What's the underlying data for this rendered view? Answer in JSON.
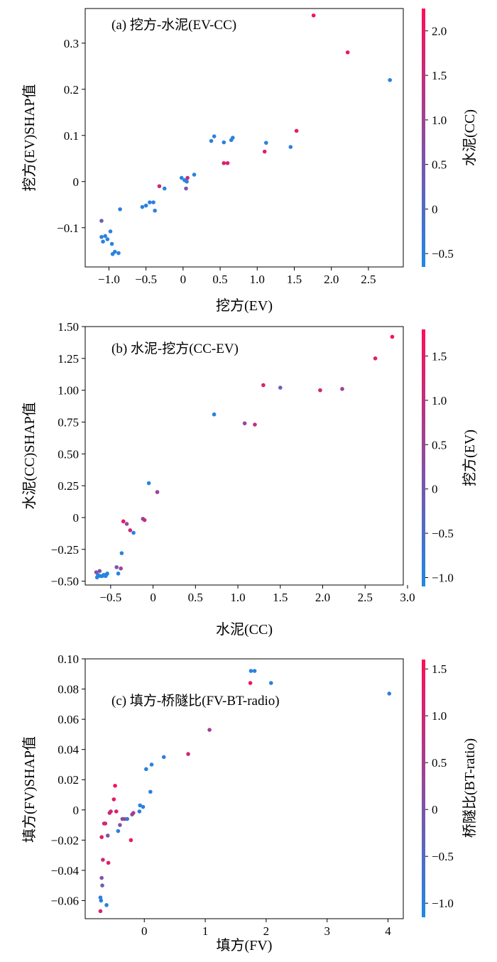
{
  "chart_data": [
    {
      "type": "scatter",
      "annotation": "(a) 挖方-水泥(EV-CC)",
      "xlabel": "挖方(EV)",
      "ylabel": "挖方(EV)SHAP值",
      "colorbar_label": "水泥(CC)",
      "xlim": [
        -1.32,
        2.97
      ],
      "ylim": [
        -0.185,
        0.375
      ],
      "xticks": [
        -1.0,
        -0.5,
        0,
        0.5,
        1.0,
        1.5,
        2.0,
        2.5
      ],
      "xtick_labels": [
        "−1.0",
        "−0.5",
        "0",
        "0.5",
        "1.0",
        "1.5",
        "2.0",
        "2.5"
      ],
      "yticks": [
        -0.1,
        0,
        0.1,
        0.2,
        0.3
      ],
      "ytick_labels": [
        "−0.1",
        "0",
        "0.1",
        "0.2",
        "0.3"
      ],
      "clim": [
        -0.65,
        2.25
      ],
      "cticks": [
        -0.5,
        0,
        0.5,
        1.0,
        1.5,
        2.0
      ],
      "ctick_labels": [
        "−0.5",
        "0",
        "0.5",
        "1.0",
        "1.5",
        "2.0"
      ],
      "points": [
        {
          "x": -1.1,
          "y": -0.085,
          "c": 0.4
        },
        {
          "x": -1.1,
          "y": -0.12,
          "c": -0.5
        },
        {
          "x": -1.08,
          "y": -0.13,
          "c": -0.5
        },
        {
          "x": -1.05,
          "y": -0.118,
          "c": -0.5
        },
        {
          "x": -1.02,
          "y": -0.125,
          "c": -0.5
        },
        {
          "x": -0.98,
          "y": -0.108,
          "c": -0.5
        },
        {
          "x": -0.96,
          "y": -0.135,
          "c": -0.5
        },
        {
          "x": -0.95,
          "y": -0.157,
          "c": -0.5
        },
        {
          "x": -0.92,
          "y": -0.152,
          "c": -0.5
        },
        {
          "x": -0.87,
          "y": -0.155,
          "c": -0.5
        },
        {
          "x": -0.85,
          "y": -0.06,
          "c": -0.5
        },
        {
          "x": -0.55,
          "y": -0.055,
          "c": -0.5
        },
        {
          "x": -0.5,
          "y": -0.052,
          "c": -0.5
        },
        {
          "x": -0.45,
          "y": -0.045,
          "c": -0.5
        },
        {
          "x": -0.4,
          "y": -0.045,
          "c": -0.5
        },
        {
          "x": -0.38,
          "y": -0.063,
          "c": -0.5
        },
        {
          "x": -0.32,
          "y": -0.01,
          "c": 1.6
        },
        {
          "x": -0.25,
          "y": -0.015,
          "c": -0.5
        },
        {
          "x": -0.02,
          "y": 0.008,
          "c": -0.5
        },
        {
          "x": 0.02,
          "y": 0.003,
          "c": -0.5
        },
        {
          "x": 0.05,
          "y": 0.0,
          "c": -0.5
        },
        {
          "x": 0.06,
          "y": 0.008,
          "c": 1.5
        },
        {
          "x": 0.04,
          "y": -0.015,
          "c": 0.5
        },
        {
          "x": 0.15,
          "y": 0.015,
          "c": -0.5
        },
        {
          "x": 0.38,
          "y": 0.088,
          "c": -0.5
        },
        {
          "x": 0.42,
          "y": 0.098,
          "c": -0.5
        },
        {
          "x": 0.55,
          "y": 0.085,
          "c": -0.5
        },
        {
          "x": 0.55,
          "y": 0.04,
          "c": 1.8
        },
        {
          "x": 0.6,
          "y": 0.04,
          "c": 1.8
        },
        {
          "x": 0.65,
          "y": 0.09,
          "c": -0.5
        },
        {
          "x": 0.67,
          "y": 0.095,
          "c": -0.5
        },
        {
          "x": 1.12,
          "y": 0.084,
          "c": -0.5
        },
        {
          "x": 1.1,
          "y": 0.065,
          "c": 1.8
        },
        {
          "x": 1.45,
          "y": 0.075,
          "c": -0.5
        },
        {
          "x": 1.53,
          "y": 0.11,
          "c": 1.9
        },
        {
          "x": 1.76,
          "y": 0.36,
          "c": 2.1
        },
        {
          "x": 2.22,
          "y": 0.28,
          "c": 2.0
        },
        {
          "x": 2.79,
          "y": 0.22,
          "c": -0.5
        }
      ]
    },
    {
      "type": "scatter",
      "annotation": "(b) 水泥-挖方(CC-EV)",
      "xlabel": "水泥(CC)",
      "ylabel": "水泥(CC)SHAP值",
      "colorbar_label": "挖方(EV)",
      "xlim": [
        -0.8,
        2.95
      ],
      "ylim": [
        -0.53,
        1.5
      ],
      "xticks": [
        -0.5,
        0,
        0.5,
        1.0,
        1.5,
        2.0,
        2.5,
        3.0
      ],
      "xtick_labels": [
        "−0.5",
        "0",
        "0.5",
        "1.0",
        "1.5",
        "2.0",
        "2.5",
        "3.0"
      ],
      "yticks": [
        -0.5,
        -0.25,
        0,
        0.25,
        0.5,
        0.75,
        1.0,
        1.25,
        1.5
      ],
      "ytick_labels": [
        "−0.50",
        "−0.25",
        "0",
        "0.25",
        "0.50",
        "0.75",
        "1.00",
        "1.25",
        "1.50"
      ],
      "clim": [
        -1.1,
        1.8
      ],
      "cticks": [
        -1.0,
        -0.5,
        0,
        0.5,
        1.0,
        1.5
      ],
      "ctick_labels": [
        "−1.0",
        "−0.5",
        "0",
        "0.5",
        "1.0",
        "1.5"
      ],
      "points": [
        {
          "x": -0.67,
          "y": -0.43,
          "c": 0.3
        },
        {
          "x": -0.66,
          "y": -0.47,
          "c": -1.0
        },
        {
          "x": -0.65,
          "y": -0.45,
          "c": -1.0
        },
        {
          "x": -0.63,
          "y": -0.42,
          "c": 0.2
        },
        {
          "x": -0.62,
          "y": -0.46,
          "c": -1.0
        },
        {
          "x": -0.6,
          "y": -0.46,
          "c": -1.0
        },
        {
          "x": -0.58,
          "y": -0.45,
          "c": -1.0
        },
        {
          "x": -0.56,
          "y": -0.46,
          "c": -1.0
        },
        {
          "x": -0.55,
          "y": -0.45,
          "c": -1.0
        },
        {
          "x": -0.54,
          "y": -0.44,
          "c": -1.0
        },
        {
          "x": -0.43,
          "y": -0.39,
          "c": 0.0
        },
        {
          "x": -0.41,
          "y": -0.44,
          "c": -1.0
        },
        {
          "x": -0.38,
          "y": -0.4,
          "c": 0.5
        },
        {
          "x": -0.37,
          "y": -0.28,
          "c": -1.0
        },
        {
          "x": -0.35,
          "y": -0.03,
          "c": 1.6
        },
        {
          "x": -0.31,
          "y": -0.05,
          "c": 0.3
        },
        {
          "x": -0.27,
          "y": -0.1,
          "c": 1.2
        },
        {
          "x": -0.23,
          "y": -0.12,
          "c": -1.0
        },
        {
          "x": -0.12,
          "y": -0.01,
          "c": 0.5
        },
        {
          "x": -0.1,
          "y": -0.02,
          "c": 1.0
        },
        {
          "x": -0.05,
          "y": 0.27,
          "c": -1.0
        },
        {
          "x": 0.05,
          "y": 0.2,
          "c": 0.6
        },
        {
          "x": 0.72,
          "y": 0.81,
          "c": -1.0
        },
        {
          "x": 1.08,
          "y": 0.74,
          "c": 0.4
        },
        {
          "x": 1.2,
          "y": 0.73,
          "c": 1.0
        },
        {
          "x": 1.3,
          "y": 1.04,
          "c": 1.3
        },
        {
          "x": 1.5,
          "y": 1.02,
          "c": -0.2
        },
        {
          "x": 1.97,
          "y": 1.0,
          "c": 1.2
        },
        {
          "x": 2.23,
          "y": 1.01,
          "c": 0.6
        },
        {
          "x": 2.62,
          "y": 1.25,
          "c": 1.4
        },
        {
          "x": 2.82,
          "y": 1.42,
          "c": 1.7
        }
      ]
    },
    {
      "type": "scatter",
      "annotation": "(c) 填方-桥隧比(FV-BT-radio)",
      "xlabel": "填方(FV)",
      "ylabel": "填方(FV)SHAP值",
      "colorbar_label": "桥隧比(BT-ratio)",
      "xlim": [
        -0.97,
        4.25
      ],
      "ylim": [
        -0.072,
        0.1
      ],
      "xticks": [
        0,
        1,
        2,
        3,
        4
      ],
      "xtick_labels": [
        "0",
        "1",
        "2",
        "3",
        "4"
      ],
      "yticks": [
        -0.06,
        -0.04,
        -0.02,
        0,
        0.02,
        0.04,
        0.06,
        0.08,
        0.1
      ],
      "ytick_labels": [
        "−0.06",
        "−0.04",
        "−0.02",
        "0",
        "0.02",
        "0.04",
        "0.06",
        "0.08",
        "0.10"
      ],
      "clim": [
        -1.15,
        1.6
      ],
      "cticks": [
        -1.0,
        -0.5,
        0,
        0.5,
        1.0,
        1.5
      ],
      "ctick_labels": [
        "−1.0",
        "−0.5",
        "0",
        "0.5",
        "1.0",
        "1.5"
      ],
      "points": [
        {
          "x": -0.72,
          "y": -0.067,
          "c": 1.0
        },
        {
          "x": -0.72,
          "y": -0.058,
          "c": -1.0
        },
        {
          "x": -0.71,
          "y": -0.06,
          "c": -1.0
        },
        {
          "x": -0.7,
          "y": -0.045,
          "c": 0.0
        },
        {
          "x": -0.69,
          "y": -0.05,
          "c": -0.2
        },
        {
          "x": -0.7,
          "y": -0.018,
          "c": 1.3
        },
        {
          "x": -0.68,
          "y": -0.033,
          "c": 1.0
        },
        {
          "x": -0.66,
          "y": -0.009,
          "c": 1.0
        },
        {
          "x": -0.64,
          "y": -0.009,
          "c": 1.0
        },
        {
          "x": -0.62,
          "y": -0.063,
          "c": -1.0
        },
        {
          "x": -0.6,
          "y": -0.017,
          "c": 0.0
        },
        {
          "x": -0.59,
          "y": -0.035,
          "c": 1.2
        },
        {
          "x": -0.57,
          "y": -0.002,
          "c": 1.0
        },
        {
          "x": -0.55,
          "y": -0.001,
          "c": 1.0
        },
        {
          "x": -0.5,
          "y": 0.007,
          "c": 1.3
        },
        {
          "x": -0.48,
          "y": 0.016,
          "c": 1.4
        },
        {
          "x": -0.46,
          "y": -0.001,
          "c": 1.2
        },
        {
          "x": -0.43,
          "y": -0.014,
          "c": -1.0
        },
        {
          "x": -0.4,
          "y": -0.01,
          "c": 0.0
        },
        {
          "x": -0.36,
          "y": -0.006,
          "c": 0.2
        },
        {
          "x": -0.32,
          "y": -0.006,
          "c": 0.3
        },
        {
          "x": -0.28,
          "y": -0.006,
          "c": -0.8
        },
        {
          "x": -0.22,
          "y": -0.02,
          "c": 1.2
        },
        {
          "x": -0.2,
          "y": -0.003,
          "c": 0.3
        },
        {
          "x": -0.18,
          "y": -0.002,
          "c": 0.5
        },
        {
          "x": -0.08,
          "y": -0.001,
          "c": -1.0
        },
        {
          "x": -0.07,
          "y": 0.003,
          "c": -1.0
        },
        {
          "x": -0.02,
          "y": 0.002,
          "c": -1.0
        },
        {
          "x": 0.03,
          "y": 0.027,
          "c": -1.0
        },
        {
          "x": 0.1,
          "y": 0.012,
          "c": -1.0
        },
        {
          "x": 0.12,
          "y": 0.03,
          "c": -1.0
        },
        {
          "x": 0.32,
          "y": 0.035,
          "c": -1.0
        },
        {
          "x": 0.72,
          "y": 0.037,
          "c": 1.0
        },
        {
          "x": 1.07,
          "y": 0.053,
          "c": 0.5
        },
        {
          "x": 1.74,
          "y": 0.084,
          "c": 1.5
        },
        {
          "x": 1.75,
          "y": 0.092,
          "c": -1.0
        },
        {
          "x": 1.81,
          "y": 0.092,
          "c": -1.0
        },
        {
          "x": 2.08,
          "y": 0.084,
          "c": -1.0
        },
        {
          "x": 4.02,
          "y": 0.077,
          "c": -1.0
        }
      ]
    }
  ],
  "colormap": {
    "low": "#1e88e5",
    "high": "#ff0d57"
  }
}
